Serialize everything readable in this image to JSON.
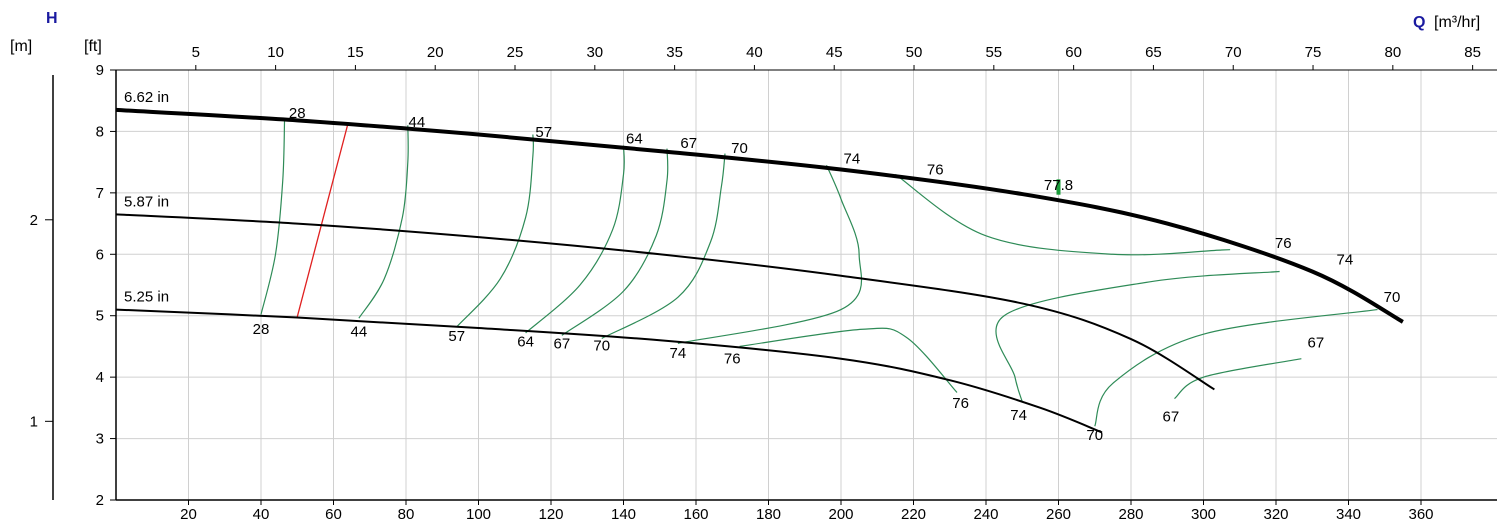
{
  "chart_data": {
    "type": "line",
    "title": "",
    "axes": {
      "h_name": "H",
      "h_unit_m": "[m]",
      "h_unit_ft": "[ft]",
      "q_name": "Q",
      "q_unit": "[m³/hr]"
    },
    "ft_range": [
      2,
      9
    ],
    "ft_ticks": [
      "2",
      "3",
      "4",
      "5",
      "6",
      "7",
      "8",
      "9"
    ],
    "m_ticks": [
      {
        "value": 1,
        "label": "1"
      },
      {
        "value": 2,
        "label": "2"
      }
    ],
    "gpm_range": [
      0,
      380
    ],
    "gpm_ticks": [
      "20",
      "40",
      "60",
      "80",
      "100",
      "120",
      "140",
      "160",
      "180",
      "200",
      "220",
      "240",
      "260",
      "280",
      "300",
      "320",
      "340",
      "360"
    ],
    "m3h_ticks": [
      "5",
      "10",
      "15",
      "20",
      "25",
      "30",
      "35",
      "40",
      "45",
      "50",
      "55",
      "60",
      "65",
      "70",
      "75",
      "80",
      "85"
    ],
    "grid": true,
    "series": [
      {
        "name": "6.62 in",
        "bold": true,
        "points": [
          [
            0,
            8.35
          ],
          [
            50,
            8.18
          ],
          [
            100,
            7.95
          ],
          [
            150,
            7.68
          ],
          [
            200,
            7.38
          ],
          [
            250,
            6.98
          ],
          [
            290,
            6.5
          ],
          [
            330,
            5.72
          ],
          [
            355,
            4.9
          ]
        ]
      },
      {
        "name": "5.87 in",
        "bold": false,
        "points": [
          [
            0,
            6.65
          ],
          [
            50,
            6.5
          ],
          [
            100,
            6.28
          ],
          [
            150,
            6.0
          ],
          [
            200,
            5.65
          ],
          [
            250,
            5.2
          ],
          [
            280,
            4.62
          ],
          [
            303,
            3.8
          ]
        ]
      },
      {
        "name": "5.25 in",
        "bold": false,
        "points": [
          [
            0,
            5.1
          ],
          [
            50,
            4.97
          ],
          [
            100,
            4.8
          ],
          [
            150,
            4.6
          ],
          [
            200,
            4.3
          ],
          [
            230,
            3.95
          ],
          [
            255,
            3.5
          ],
          [
            272,
            3.1
          ]
        ]
      }
    ],
    "efficiency_labels": [
      {
        "text": "28",
        "q": 50,
        "h": 8.22
      },
      {
        "text": "44",
        "q": 83,
        "h": 8.07
      },
      {
        "text": "57",
        "q": 118,
        "h": 7.91
      },
      {
        "text": "64",
        "q": 143,
        "h": 7.8
      },
      {
        "text": "67",
        "q": 158,
        "h": 7.73
      },
      {
        "text": "70",
        "q": 172,
        "h": 7.65
      },
      {
        "text": "74",
        "q": 203,
        "h": 7.48
      },
      {
        "text": "76",
        "q": 226,
        "h": 7.3
      },
      {
        "text": "77.8",
        "q": 260,
        "h": 7.05
      },
      {
        "text": "76",
        "q": 322,
        "h": 6.1
      },
      {
        "text": "74",
        "q": 339,
        "h": 5.83
      },
      {
        "text": "70",
        "q": 352,
        "h": 5.22
      },
      {
        "text": "67",
        "q": 331,
        "h": 4.48
      },
      {
        "text": "28",
        "q": 40,
        "h": 4.7
      },
      {
        "text": "44",
        "q": 67,
        "h": 4.66
      },
      {
        "text": "57",
        "q": 94,
        "h": 4.59
      },
      {
        "text": "64",
        "q": 113,
        "h": 4.5
      },
      {
        "text": "67",
        "q": 123,
        "h": 4.47
      },
      {
        "text": "70",
        "q": 134,
        "h": 4.43
      },
      {
        "text": "74",
        "q": 155,
        "h": 4.31
      },
      {
        "text": "76",
        "q": 170,
        "h": 4.22
      },
      {
        "text": "76",
        "q": 233,
        "h": 3.5
      },
      {
        "text": "74",
        "q": 249,
        "h": 3.3
      },
      {
        "text": "70",
        "q": 270,
        "h": 2.98
      },
      {
        "text": "67",
        "q": 291,
        "h": 3.28
      }
    ],
    "efficiency_contours": [
      {
        "label": "28",
        "points": [
          [
            40,
            5.02
          ],
          [
            44,
            6.0
          ],
          [
            46,
            7.2
          ],
          [
            46.5,
            8.2
          ]
        ]
      },
      {
        "label": "44",
        "points": [
          [
            67,
            4.96
          ],
          [
            74,
            5.6
          ],
          [
            79,
            6.6
          ],
          [
            80.5,
            7.5
          ],
          [
            80.5,
            8.1
          ]
        ]
      },
      {
        "label": "57",
        "points": [
          [
            94,
            4.82
          ],
          [
            106,
            5.6
          ],
          [
            113,
            6.6
          ],
          [
            115,
            7.6
          ],
          [
            115,
            7.95
          ]
        ]
      },
      {
        "label": "64",
        "points": [
          [
            113,
            4.72
          ],
          [
            128,
            5.5
          ],
          [
            137,
            6.4
          ],
          [
            140,
            7.3
          ],
          [
            140,
            7.77
          ]
        ]
      },
      {
        "label": "67",
        "points": [
          [
            123,
            4.68
          ],
          [
            140,
            5.4
          ],
          [
            149,
            6.3
          ],
          [
            152,
            7.2
          ],
          [
            152,
            7.72
          ]
        ]
      },
      {
        "label": "70",
        "points": [
          [
            134,
            4.63
          ],
          [
            155,
            5.3
          ],
          [
            164,
            6.2
          ],
          [
            167,
            7.1
          ],
          [
            168,
            7.64
          ]
        ]
      },
      {
        "label": "74",
        "points": [
          [
            155,
            4.55
          ],
          [
            200,
            5.1
          ],
          [
            205,
            6.0
          ],
          [
            200,
            6.9
          ],
          [
            196,
            7.45
          ]
        ]
      },
      {
        "label": "76",
        "points": [
          [
            172,
            4.5
          ],
          [
            206,
            4.78
          ],
          [
            218,
            4.65
          ],
          [
            232,
            3.75
          ]
        ]
      },
      {
        "label": "76",
        "points": [
          [
            215,
            7.3
          ],
          [
            240,
            6.3
          ],
          [
            275,
            6.0
          ],
          [
            305,
            6.07
          ],
          [
            305,
            6.07
          ]
        ]
      },
      {
        "label": "74",
        "points": [
          [
            321,
            5.72
          ],
          [
            285,
            5.55
          ],
          [
            245,
            5.0
          ],
          [
            248,
            4.0
          ],
          [
            250,
            3.6
          ]
        ]
      },
      {
        "label": "70",
        "points": [
          [
            348,
            5.1
          ],
          [
            300,
            4.7
          ],
          [
            275,
            3.9
          ],
          [
            270,
            3.2
          ]
        ]
      },
      {
        "label": "67",
        "points": [
          [
            327,
            4.3
          ],
          [
            300,
            4.0
          ],
          [
            292,
            3.65
          ]
        ]
      }
    ],
    "constraint_line": {
      "points": [
        [
          50,
          4.98
        ],
        [
          64,
          8.13
        ]
      ]
    },
    "bep_marker": {
      "q": 260,
      "h_top": 6.97,
      "h_bottom": 7.22
    }
  }
}
